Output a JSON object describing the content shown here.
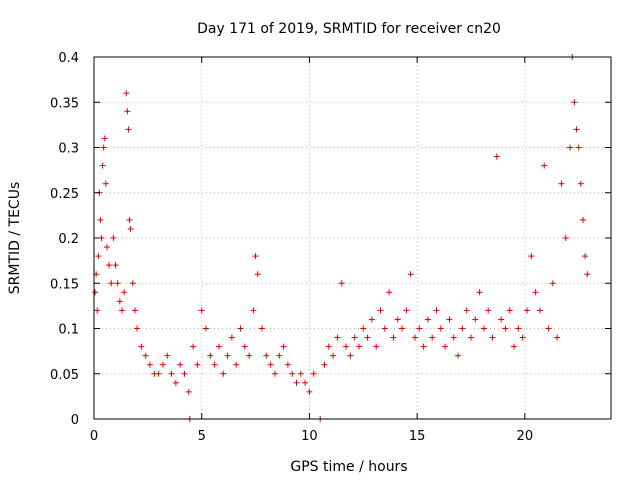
{
  "chart_data": {
    "type": "scatter",
    "title": "Day 171 of 2019, SRMTID for receiver cn20",
    "xlabel": "GPS time / hours",
    "ylabel": "SRMTID / TECUs",
    "xlim": [
      0,
      24
    ],
    "ylim": [
      0,
      0.4
    ],
    "xticks": [
      0,
      5,
      10,
      15,
      20
    ],
    "xtick_labels": [
      "0",
      "5",
      "10",
      "15",
      "20"
    ],
    "yticks": [
      0,
      0.05,
      0.1,
      0.15,
      0.2,
      0.25,
      0.3,
      0.35,
      0.4
    ],
    "ytick_labels": [
      "0",
      "0.05",
      "0.1",
      "0.15",
      "0.2",
      "0.25",
      "0.3",
      "0.35",
      "0.4"
    ],
    "grid": true,
    "marker": "+",
    "color": "#e00000",
    "series": [
      {
        "name": "SRMTID",
        "points": [
          [
            0.05,
            0.14
          ],
          [
            0.1,
            0.16
          ],
          [
            0.15,
            0.12
          ],
          [
            0.2,
            0.18
          ],
          [
            0.25,
            0.25
          ],
          [
            0.3,
            0.22
          ],
          [
            0.35,
            0.2
          ],
          [
            0.4,
            0.28
          ],
          [
            0.45,
            0.3
          ],
          [
            0.5,
            0.31
          ],
          [
            0.55,
            0.26
          ],
          [
            0.6,
            0.19
          ],
          [
            0.7,
            0.17
          ],
          [
            0.8,
            0.15
          ],
          [
            0.9,
            0.2
          ],
          [
            1.0,
            0.17
          ],
          [
            1.1,
            0.15
          ],
          [
            1.2,
            0.13
          ],
          [
            1.3,
            0.12
          ],
          [
            1.4,
            0.14
          ],
          [
            1.5,
            0.36
          ],
          [
            1.55,
            0.34
          ],
          [
            1.6,
            0.32
          ],
          [
            1.65,
            0.22
          ],
          [
            1.7,
            0.21
          ],
          [
            1.8,
            0.15
          ],
          [
            1.9,
            0.12
          ],
          [
            2.0,
            0.1
          ],
          [
            2.2,
            0.08
          ],
          [
            2.4,
            0.07
          ],
          [
            2.6,
            0.06
          ],
          [
            2.8,
            0.05
          ],
          [
            3.0,
            0.05
          ],
          [
            3.2,
            0.06
          ],
          [
            3.4,
            0.07
          ],
          [
            3.6,
            0.05
          ],
          [
            3.8,
            0.04
          ],
          [
            4.0,
            0.06
          ],
          [
            4.2,
            0.05
          ],
          [
            4.4,
            0.03
          ],
          [
            4.45,
            0.0
          ],
          [
            4.6,
            0.08
          ],
          [
            4.8,
            0.06
          ],
          [
            5.0,
            0.12
          ],
          [
            5.2,
            0.1
          ],
          [
            5.4,
            0.07
          ],
          [
            5.6,
            0.06
          ],
          [
            5.8,
            0.08
          ],
          [
            6.0,
            0.05
          ],
          [
            6.2,
            0.07
          ],
          [
            6.4,
            0.09
          ],
          [
            6.6,
            0.06
          ],
          [
            6.8,
            0.1
          ],
          [
            7.0,
            0.08
          ],
          [
            7.2,
            0.07
          ],
          [
            7.4,
            0.12
          ],
          [
            7.5,
            0.18
          ],
          [
            7.6,
            0.16
          ],
          [
            7.8,
            0.1
          ],
          [
            8.0,
            0.07
          ],
          [
            8.2,
            0.06
          ],
          [
            8.4,
            0.05
          ],
          [
            8.6,
            0.07
          ],
          [
            8.8,
            0.08
          ],
          [
            9.0,
            0.06
          ],
          [
            9.2,
            0.05
          ],
          [
            9.4,
            0.04
          ],
          [
            9.6,
            0.05
          ],
          [
            9.8,
            0.04
          ],
          [
            10.0,
            0.03
          ],
          [
            10.2,
            0.05
          ],
          [
            10.5,
            0.0
          ],
          [
            10.7,
            0.06
          ],
          [
            10.9,
            0.08
          ],
          [
            11.1,
            0.07
          ],
          [
            11.3,
            0.09
          ],
          [
            11.5,
            0.15
          ],
          [
            11.7,
            0.08
          ],
          [
            11.9,
            0.07
          ],
          [
            12.1,
            0.09
          ],
          [
            12.3,
            0.08
          ],
          [
            12.5,
            0.1
          ],
          [
            12.7,
            0.09
          ],
          [
            12.9,
            0.11
          ],
          [
            13.1,
            0.08
          ],
          [
            13.3,
            0.12
          ],
          [
            13.5,
            0.1
          ],
          [
            13.7,
            0.14
          ],
          [
            13.9,
            0.09
          ],
          [
            14.1,
            0.11
          ],
          [
            14.3,
            0.1
          ],
          [
            14.5,
            0.12
          ],
          [
            14.7,
            0.16
          ],
          [
            14.9,
            0.09
          ],
          [
            15.1,
            0.1
          ],
          [
            15.3,
            0.08
          ],
          [
            15.5,
            0.11
          ],
          [
            15.7,
            0.09
          ],
          [
            15.9,
            0.12
          ],
          [
            16.1,
            0.1
          ],
          [
            16.3,
            0.08
          ],
          [
            16.5,
            0.11
          ],
          [
            16.7,
            0.09
          ],
          [
            16.9,
            0.07
          ],
          [
            17.1,
            0.1
          ],
          [
            17.3,
            0.12
          ],
          [
            17.5,
            0.09
          ],
          [
            17.7,
            0.11
          ],
          [
            17.9,
            0.14
          ],
          [
            18.1,
            0.1
          ],
          [
            18.3,
            0.12
          ],
          [
            18.5,
            0.09
          ],
          [
            18.7,
            0.29
          ],
          [
            18.9,
            0.11
          ],
          [
            19.1,
            0.1
          ],
          [
            19.3,
            0.12
          ],
          [
            19.5,
            0.08
          ],
          [
            19.7,
            0.1
          ],
          [
            19.9,
            0.09
          ],
          [
            20.1,
            0.12
          ],
          [
            20.3,
            0.18
          ],
          [
            20.5,
            0.14
          ],
          [
            20.7,
            0.12
          ],
          [
            20.9,
            0.28
          ],
          [
            21.1,
            0.1
          ],
          [
            21.3,
            0.15
          ],
          [
            21.5,
            0.09
          ],
          [
            21.7,
            0.26
          ],
          [
            21.9,
            0.2
          ],
          [
            22.1,
            0.3
          ],
          [
            22.2,
            0.4
          ],
          [
            22.3,
            0.35
          ],
          [
            22.4,
            0.32
          ],
          [
            22.5,
            0.3
          ],
          [
            22.6,
            0.26
          ],
          [
            22.7,
            0.22
          ],
          [
            22.8,
            0.18
          ],
          [
            22.9,
            0.16
          ]
        ]
      }
    ]
  }
}
